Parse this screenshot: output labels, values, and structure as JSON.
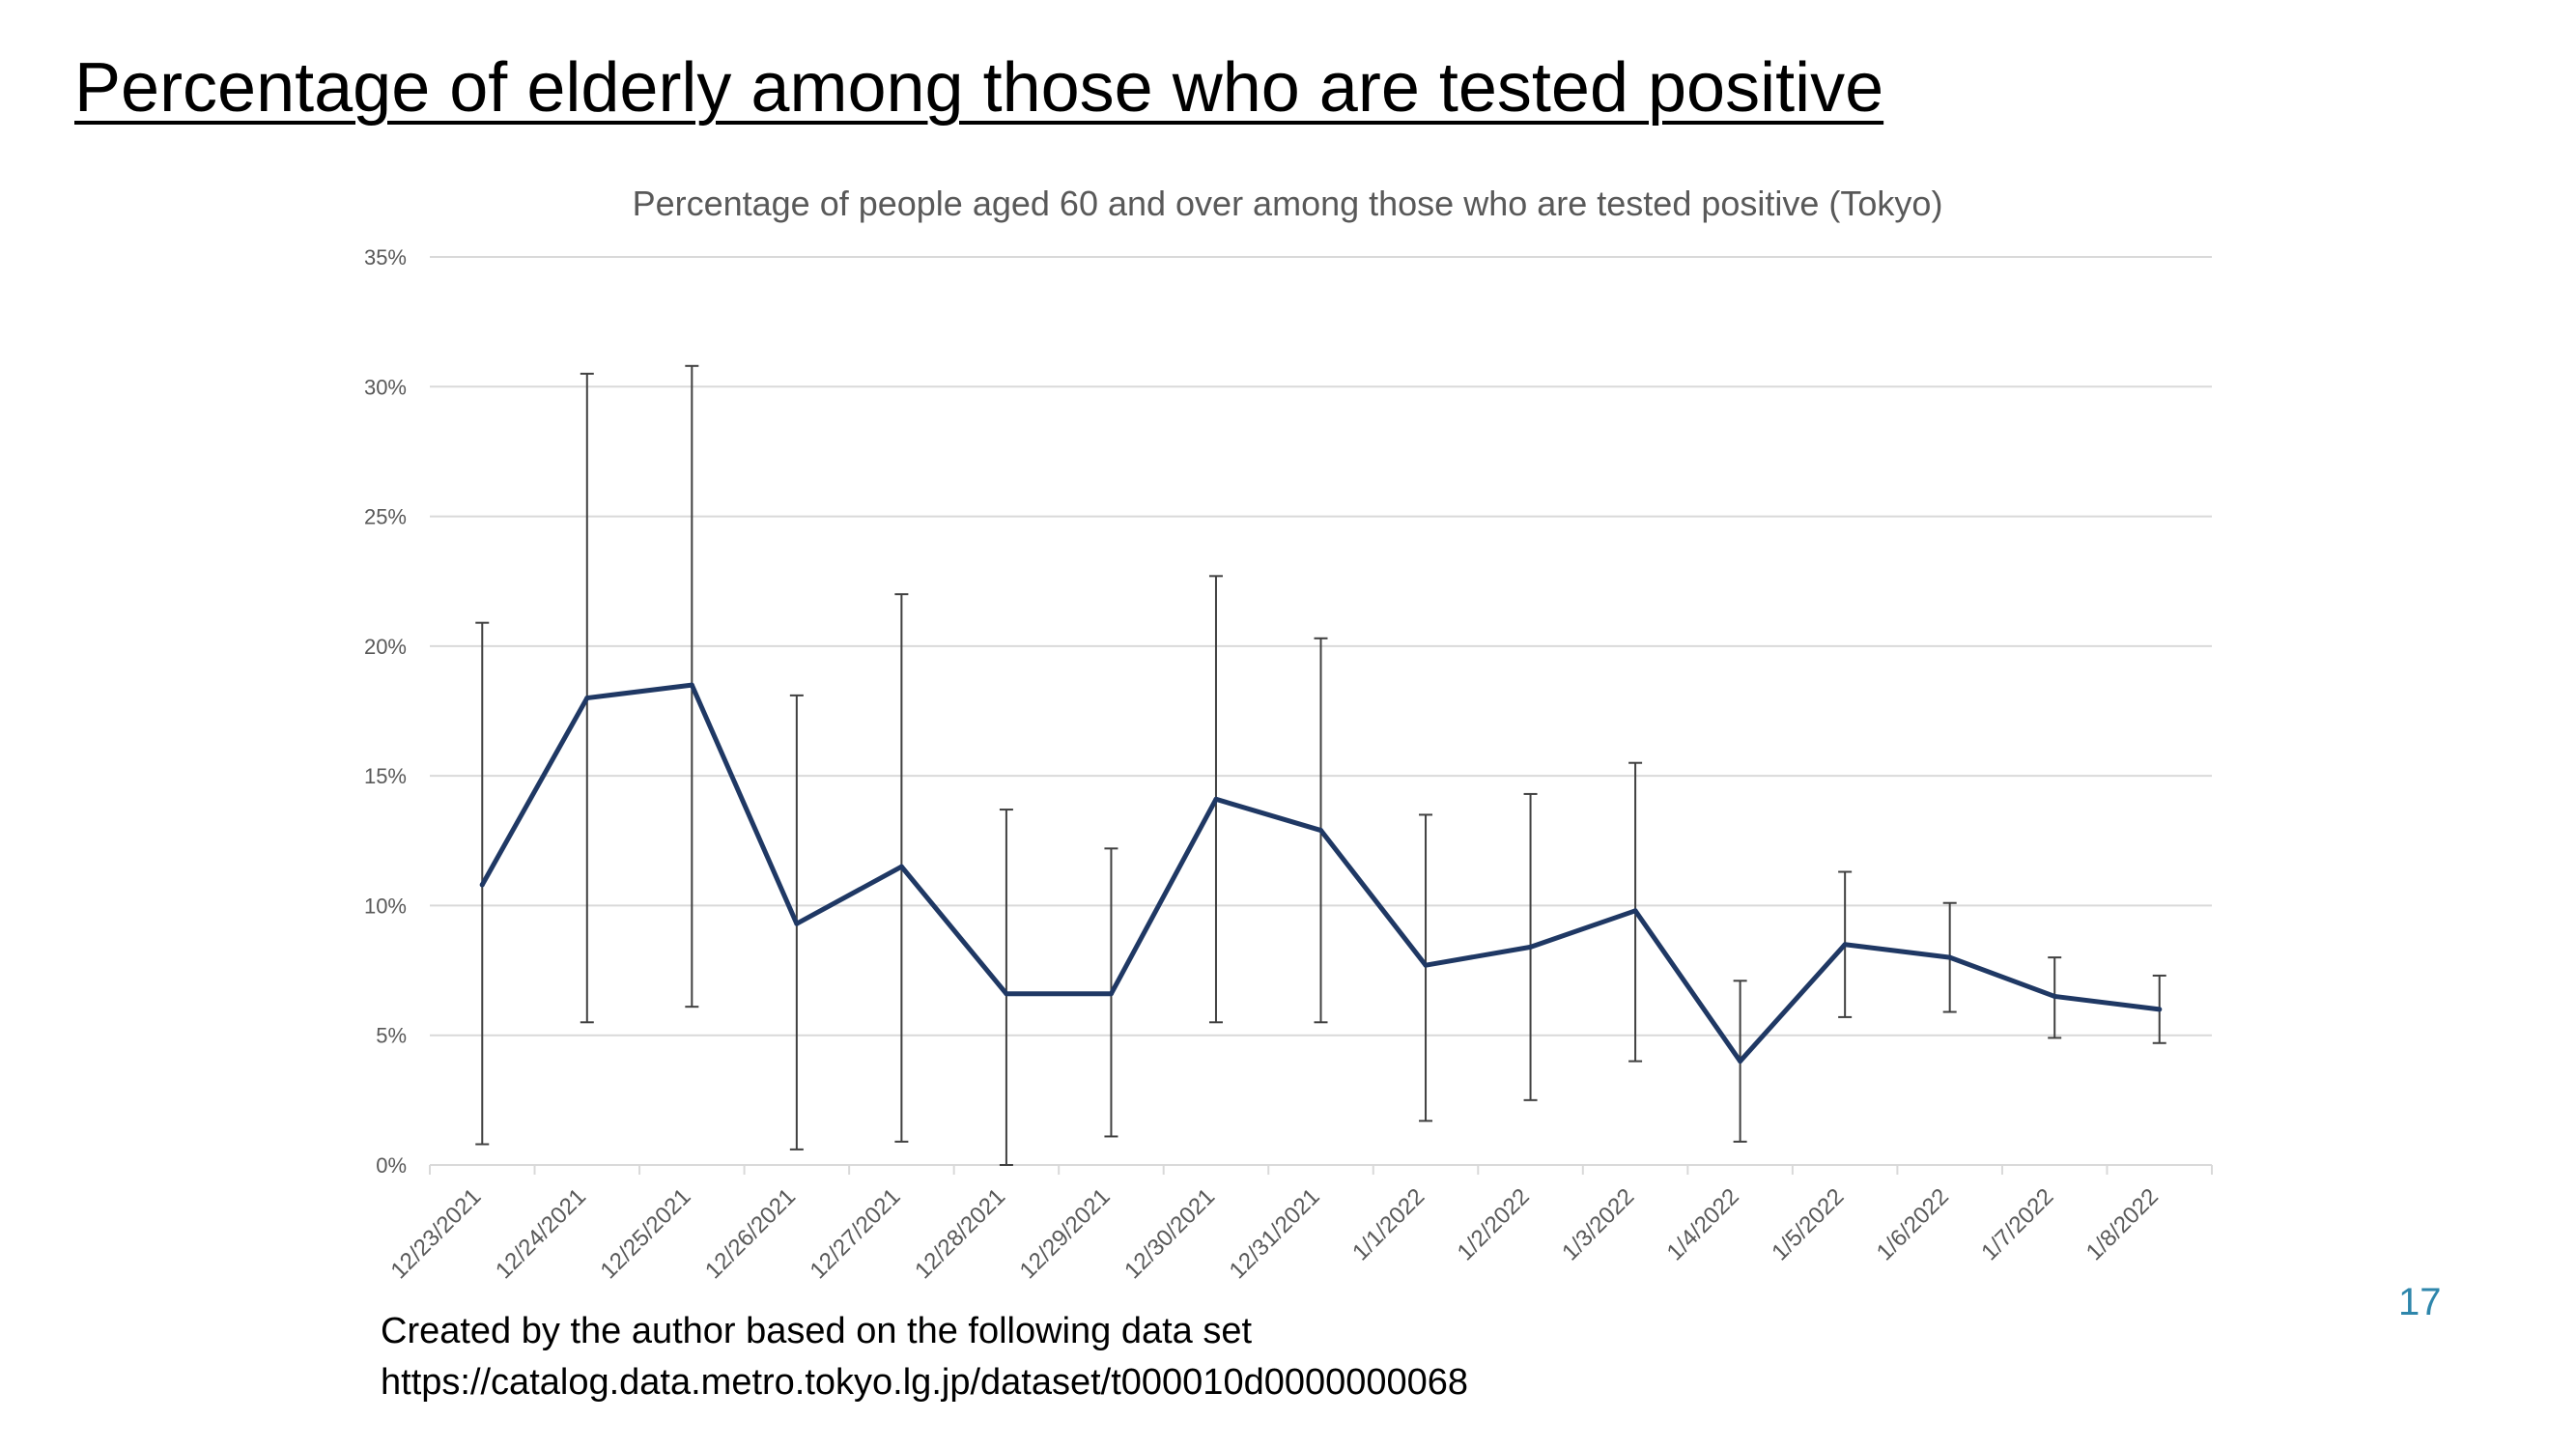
{
  "slide": {
    "title": "Percentage of elderly among those who are tested positive",
    "footnote_line1": "Created by the author based on the following data set",
    "footnote_line2": "https://catalog.data.metro.tokyo.lg.jp/dataset/t000010d0000000068",
    "page_number": "17"
  },
  "colors": {
    "series_line": "#1f3864",
    "error_bar": "#404040",
    "grid": "#d9d9d9",
    "axis_text": "#595959",
    "chart_title": "#595959"
  },
  "chart_data": {
    "type": "line",
    "title": "Percentage of people aged 60 and over among those who are tested positive (Tokyo)",
    "xlabel": "",
    "ylabel": "",
    "ylim": [
      0,
      35
    ],
    "yticks": [
      0,
      5,
      10,
      15,
      20,
      25,
      30,
      35
    ],
    "ytick_labels": [
      "0%",
      "5%",
      "10%",
      "15%",
      "20%",
      "25%",
      "30%",
      "35%"
    ],
    "grid": true,
    "legend": "none",
    "categories": [
      "12/23/2021",
      "12/24/2021",
      "12/25/2021",
      "12/26/2021",
      "12/27/2021",
      "12/28/2021",
      "12/29/2021",
      "12/30/2021",
      "12/31/2021",
      "1/1/2022",
      "1/2/2022",
      "1/3/2022",
      "1/4/2022",
      "1/5/2022",
      "1/6/2022",
      "1/7/2022",
      "1/8/2022"
    ],
    "series": [
      {
        "values": [
          10.8,
          18.0,
          18.5,
          9.3,
          11.5,
          6.6,
          6.6,
          14.1,
          12.9,
          7.7,
          8.4,
          9.8,
          4.0,
          8.5,
          8.0,
          6.5,
          6.0
        ],
        "error_low": [
          0.8,
          5.5,
          6.1,
          0.6,
          0.9,
          0.0,
          1.1,
          5.5,
          5.5,
          1.7,
          2.5,
          4.0,
          0.9,
          5.7,
          5.9,
          4.9,
          4.7
        ],
        "error_high": [
          20.9,
          30.5,
          30.8,
          18.1,
          22.0,
          13.7,
          12.2,
          22.7,
          20.3,
          13.5,
          14.3,
          15.5,
          7.1,
          11.3,
          10.1,
          8.0,
          7.3
        ]
      }
    ]
  }
}
